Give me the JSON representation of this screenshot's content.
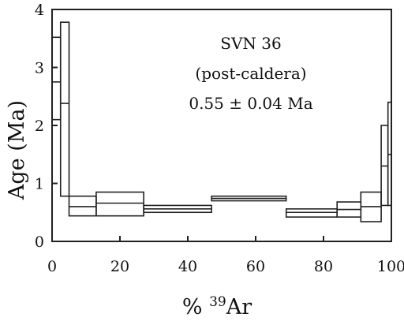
{
  "chart_data": {
    "type": "step",
    "title": "",
    "xlabel": "% ",
    "xlabel_sup": "39",
    "xlabel_suffix": "Ar",
    "ylabel": "Age (Ma)",
    "xlim": [
      0,
      100
    ],
    "ylim": [
      0,
      4
    ],
    "x_ticks": [
      "0",
      "20",
      "40",
      "60",
      "80",
      "100"
    ],
    "y_ticks": [
      "0",
      "1",
      "2",
      "3",
      "4"
    ],
    "grid": false,
    "annotations": [
      "SVN 36",
      "(post-caldera)",
      "0.55 ±  0.04 Ma"
    ],
    "steps": [
      {
        "x_start": 0,
        "x_end": 2.5,
        "age_high": 3.52,
        "age_mid": 2.75,
        "age_low": 2.1
      },
      {
        "x_start": 2.5,
        "x_end": 5,
        "age_high": 3.78,
        "age_mid": 2.38,
        "age_low": 0.78
      },
      {
        "x_start": 5,
        "x_end": 13,
        "age_high": 0.78,
        "age_mid": 0.6,
        "age_low": 0.44
      },
      {
        "x_start": 13,
        "x_end": 27,
        "age_high": 0.85,
        "age_mid": 0.66,
        "age_low": 0.44
      },
      {
        "x_start": 27,
        "x_end": 47,
        "age_high": 0.62,
        "age_mid": 0.56,
        "age_low": 0.5
      },
      {
        "x_start": 47,
        "x_end": 69,
        "age_high": 0.78,
        "age_mid": 0.74,
        "age_low": 0.7
      },
      {
        "x_start": 69,
        "x_end": 84,
        "age_high": 0.56,
        "age_mid": 0.5,
        "age_low": 0.42
      },
      {
        "x_start": 84,
        "x_end": 91,
        "age_high": 0.68,
        "age_mid": 0.55,
        "age_low": 0.42
      },
      {
        "x_start": 91,
        "x_end": 97,
        "age_high": 0.85,
        "age_mid": 0.6,
        "age_low": 0.34
      },
      {
        "x_start": 97,
        "x_end": 99,
        "age_high": 2.0,
        "age_mid": 1.3,
        "age_low": 0.62
      },
      {
        "x_start": 99,
        "x_end": 100,
        "age_high": 2.4,
        "age_mid": 1.5,
        "age_low": 0.62
      }
    ]
  }
}
